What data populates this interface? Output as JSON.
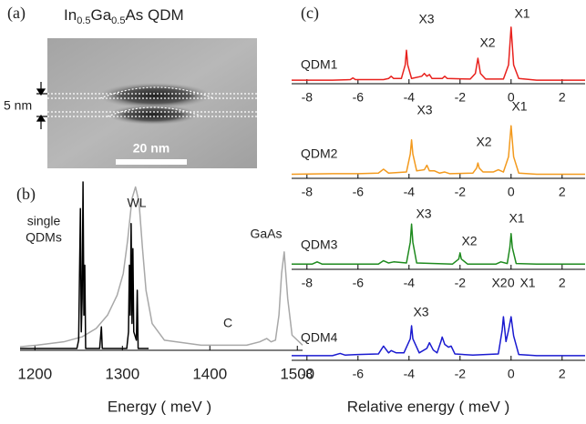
{
  "image_panel": {
    "label": "(a)",
    "title_parts": [
      "In",
      "0.5",
      "Ga",
      "0.5",
      "As QDM"
    ],
    "scale_bar": "20 nm",
    "thickness": "5 nm"
  },
  "panel_c": {
    "label": "(c)",
    "xlabel": "Relative energy ( meV )"
  },
  "chart_data": [
    {
      "type": "line",
      "panel_label": "(b)",
      "xlabel": "Energy ( meV )",
      "xlim": [
        1183,
        1506
      ],
      "ylim": [
        0,
        1
      ],
      "xticks": [
        1200,
        1300,
        1400,
        1500
      ],
      "series": [
        {
          "color": "#a8a8a8",
          "x": [
            1183,
            1202,
            1233,
            1254,
            1270,
            1283,
            1294,
            1301,
            1306,
            1311,
            1315,
            1319,
            1323,
            1327,
            1334,
            1348,
            1390,
            1442,
            1457,
            1465,
            1470,
            1475,
            1479,
            1482,
            1485,
            1489,
            1494,
            1506
          ],
          "values": [
            0.01,
            0.02,
            0.04,
            0.07,
            0.12,
            0.2,
            0.32,
            0.45,
            0.65,
            0.9,
            0.97,
            0.88,
            0.6,
            0.35,
            0.15,
            0.05,
            0.02,
            0.02,
            0.04,
            0.06,
            0.04,
            0.05,
            0.2,
            0.45,
            0.58,
            0.3,
            0.08,
            0.02
          ]
        },
        {
          "color": "#000000",
          "x": [
            1183,
            1248,
            1250,
            1252,
            1253,
            1254,
            1255,
            1256,
            1257,
            1258,
            1274,
            1276,
            1277,
            1305,
            1307,
            1308,
            1309,
            1310,
            1311,
            1312,
            1313,
            1316,
            1317,
            1318,
            1330
          ],
          "values": [
            0,
            0,
            0.05,
            0.84,
            0.1,
            0.3,
            1.0,
            0.2,
            0.5,
            0,
            0,
            0.13,
            0,
            0,
            0.1,
            0.5,
            0.2,
            0.75,
            0.15,
            0.6,
            0.1,
            0.05,
            0.35,
            0,
            0
          ]
        }
      ],
      "annotations": [
        {
          "text": "single"
        },
        {
          "text": "QDMs"
        },
        {
          "text": "WL"
        },
        {
          "text": "GaAs"
        },
        {
          "text": "C"
        }
      ]
    },
    {
      "type": "line",
      "title": "QDM1",
      "xlim": [
        -8.6,
        2.9
      ],
      "ylim": [
        0,
        1
      ],
      "xticks": [
        -8,
        -6,
        -4,
        -2,
        0,
        2
      ],
      "series": [
        {
          "color": "#e8211d",
          "x": [
            -8.6,
            -7,
            -6.3,
            -6.2,
            -6.1,
            -5,
            -4.8,
            -4.7,
            -4.6,
            -4.3,
            -4.15,
            -4.1,
            -4.05,
            -3.9,
            -3.5,
            -3.4,
            -3.3,
            -3.2,
            -3.1,
            -2.7,
            -2.6,
            -2.5,
            -1.6,
            -1.4,
            -1.3,
            -1.2,
            -1.0,
            -0.3,
            -0.1,
            0,
            0.1,
            0.3,
            1,
            2.9
          ],
          "values": [
            0.03,
            0.03,
            0.04,
            0.07,
            0.04,
            0.04,
            0.06,
            0.1,
            0.06,
            0.06,
            0.3,
            0.56,
            0.3,
            0.06,
            0.1,
            0.15,
            0.1,
            0.13,
            0.06,
            0.06,
            0.1,
            0.06,
            0.05,
            0.15,
            0.42,
            0.15,
            0.05,
            0.05,
            0.3,
            0.97,
            0.3,
            0.06,
            0.03,
            0.03
          ]
        }
      ],
      "annotations": [
        {
          "text": "X3"
        },
        {
          "text": "X2"
        },
        {
          "text": "X1"
        }
      ]
    },
    {
      "type": "line",
      "title": "QDM2",
      "xlim": [
        -8.6,
        2.9
      ],
      "ylim": [
        0,
        1
      ],
      "xticks": [
        -8,
        -6,
        -4,
        -2,
        0,
        2
      ],
      "series": [
        {
          "color": "#f39a1e",
          "x": [
            -8.6,
            -7,
            -6,
            -5.2,
            -5,
            -4.8,
            -4.1,
            -3.95,
            -3.9,
            -3.85,
            -3.7,
            -3.4,
            -3.3,
            -3.2,
            -3.0,
            -2.8,
            -2.6,
            -2.4,
            -1.5,
            -1.35,
            -1.3,
            -1.25,
            -1.1,
            -0.7,
            -0.5,
            -0.3,
            -0.1,
            0,
            0.1,
            0.3,
            1,
            2.9
          ],
          "values": [
            0.04,
            0.05,
            0.05,
            0.06,
            0.13,
            0.06,
            0.08,
            0.4,
            0.65,
            0.4,
            0.1,
            0.12,
            0.2,
            0.1,
            0.1,
            0.06,
            0.08,
            0.05,
            0.06,
            0.15,
            0.24,
            0.15,
            0.08,
            0.08,
            0.12,
            0.08,
            0.35,
            0.9,
            0.35,
            0.06,
            0.04,
            0.04
          ]
        }
      ],
      "annotations": [
        {
          "text": "X3"
        },
        {
          "text": "X2"
        },
        {
          "text": "X1"
        }
      ]
    },
    {
      "type": "line",
      "title": "QDM3",
      "xlim": [
        -8.6,
        2.9
      ],
      "ylim": [
        0,
        1
      ],
      "xticks": [
        -8,
        -6,
        -4,
        -2,
        0,
        2
      ],
      "series": [
        {
          "color": "#1e8a1e",
          "x": [
            -8.6,
            -7.8,
            -7.6,
            -7.4,
            -5.2,
            -5,
            -4.8,
            -4.6,
            -4.1,
            -3.95,
            -3.9,
            -3.85,
            -3.7,
            -2.3,
            -2.05,
            -2,
            -1.95,
            -1.7,
            -0.6,
            -0.4,
            -0.15,
            -0.05,
            0,
            0.05,
            0.2,
            1,
            2.9
          ],
          "values": [
            0.06,
            0.06,
            0.1,
            0.06,
            0.06,
            0.12,
            0.08,
            0.1,
            0.08,
            0.45,
            0.77,
            0.45,
            0.08,
            0.06,
            0.15,
            0.26,
            0.15,
            0.06,
            0.06,
            0.1,
            0.07,
            0.35,
            0.6,
            0.35,
            0.07,
            0.06,
            0.06
          ]
        }
      ],
      "annotations": [
        {
          "text": "X3"
        },
        {
          "text": "X2"
        },
        {
          "text": "X1"
        }
      ]
    },
    {
      "type": "line",
      "title": "QDM4",
      "xlim": [
        -8.6,
        2.9
      ],
      "ylim": [
        0,
        1
      ],
      "xticks": [
        -8,
        -6,
        -4,
        -2,
        0,
        2
      ],
      "series": [
        {
          "color": "#1a1ad0",
          "x": [
            -8.6,
            -7,
            -6.7,
            -6.5,
            -6,
            -5.2,
            -5,
            -4.8,
            -4.7,
            -4.5,
            -4.2,
            -3.95,
            -3.9,
            -3.85,
            -3.6,
            -3.3,
            -3.2,
            -3.05,
            -2.9,
            -2.75,
            -2.7,
            -2.6,
            -2.45,
            -2.35,
            -2.2,
            -1.5,
            -0.5,
            -0.35,
            -0.3,
            -0.2,
            -0.1,
            0,
            0.1,
            0.3,
            1,
            2.9
          ],
          "values": [
            0.05,
            0.05,
            0.09,
            0.06,
            0.07,
            0.08,
            0.22,
            0.1,
            0.14,
            0.1,
            0.1,
            0.35,
            0.58,
            0.35,
            0.1,
            0.18,
            0.28,
            0.15,
            0.1,
            0.3,
            0.38,
            0.25,
            0.2,
            0.22,
            0.08,
            0.06,
            0.08,
            0.5,
            0.74,
            0.3,
            0.5,
            0.74,
            0.4,
            0.07,
            0.05,
            0.05
          ]
        }
      ],
      "annotations": [
        {
          "text": "X3"
        },
        {
          "text": "X2"
        },
        {
          "text": "X1"
        }
      ]
    }
  ]
}
